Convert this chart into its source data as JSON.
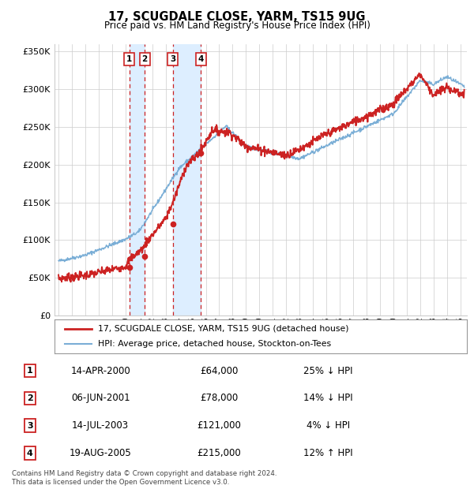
{
  "title": "17, SCUGDALE CLOSE, YARM, TS15 9UG",
  "subtitle": "Price paid vs. HM Land Registry's House Price Index (HPI)",
  "hpi_color": "#7aaed6",
  "sold_color": "#cc2222",
  "background_color": "#ffffff",
  "grid_color": "#cccccc",
  "ylim": [
    0,
    360000
  ],
  "yticks": [
    0,
    50000,
    100000,
    150000,
    200000,
    250000,
    300000,
    350000
  ],
  "ytick_labels": [
    "£0",
    "£50K",
    "£100K",
    "£150K",
    "£200K",
    "£250K",
    "£300K",
    "£350K"
  ],
  "xmin": 1994.7,
  "xmax": 2025.5,
  "sales": [
    {
      "year": 2000.28,
      "price": 64000,
      "label": "1"
    },
    {
      "year": 2001.43,
      "price": 78000,
      "label": "2"
    },
    {
      "year": 2003.53,
      "price": 121000,
      "label": "3"
    },
    {
      "year": 2005.63,
      "price": 215000,
      "label": "4"
    }
  ],
  "sale_table": [
    {
      "num": "1",
      "date": "14-APR-2000",
      "price": "£64,000",
      "hpi_diff": "25% ↓ HPI"
    },
    {
      "num": "2",
      "date": "06-JUN-2001",
      "price": "£78,000",
      "hpi_diff": "14% ↓ HPI"
    },
    {
      "num": "3",
      "date": "14-JUL-2003",
      "price": "£121,000",
      "hpi_diff": "4% ↓ HPI"
    },
    {
      "num": "4",
      "date": "19-AUG-2005",
      "price": "£215,000",
      "hpi_diff": "12% ↑ HPI"
    }
  ],
  "legend_entries": [
    "17, SCUGDALE CLOSE, YARM, TS15 9UG (detached house)",
    "HPI: Average price, detached house, Stockton-on-Tees"
  ],
  "footnote": "Contains HM Land Registry data © Crown copyright and database right 2024.\nThis data is licensed under the Open Government Licence v3.0.",
  "shaded_regions": [
    {
      "xstart": 2000.28,
      "xend": 2001.43,
      "color": "#ddeeff"
    },
    {
      "xstart": 2003.53,
      "xend": 2005.63,
      "color": "#ddeeff"
    }
  ],
  "vline_color": "#cc2222"
}
